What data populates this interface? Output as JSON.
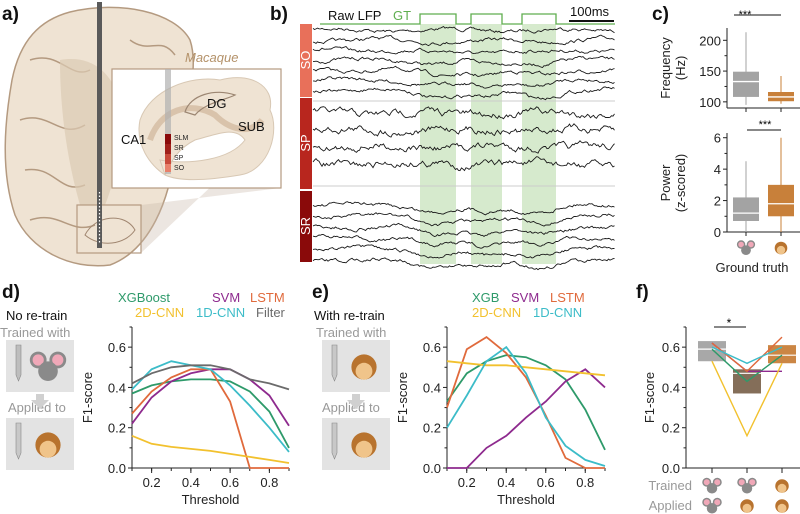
{
  "panel_labels": {
    "a": "a)",
    "b": "b)",
    "c": "c)",
    "d": "d)",
    "e": "e)",
    "f": "f)"
  },
  "colors": {
    "xgb": "#2e9a6a",
    "svm": "#8e2a8e",
    "lstm": "#e06a3c",
    "cnn2d": "#f2c12e",
    "cnn1d": "#3cbcc8",
    "filter": "#6b6b6b",
    "mouse_box": "#a3a3a3",
    "macaque_box": "#c8803a",
    "cross_box": "#7d6650",
    "gt": "#5fae4f",
    "gt_fill": "#cfe6c4",
    "so": "#e8705a",
    "sp": "#b8261e",
    "sr": "#8a0a0a",
    "tissue": "#efe3d3",
    "tissue_edge": "#b49a80"
  },
  "panel_a": {
    "species": "Macaque",
    "regions": [
      "DG",
      "SUB",
      "CA1"
    ],
    "layers": [
      "SLM",
      "SR",
      "SP",
      "SO"
    ]
  },
  "panel_b": {
    "raw_label": "Raw LFP",
    "gt_label": "GT",
    "scale_bar": "100ms",
    "layers": [
      "SO",
      "SP",
      "SR"
    ]
  },
  "panel_c": {
    "xlabel": "Ground truth",
    "significance": "***",
    "frequency": {
      "ylabel_1": "Frequency",
      "ylabel_2": "(Hz)",
      "y_ticks": [
        "100",
        "150",
        "200"
      ]
    },
    "power": {
      "ylabel_1": "Power",
      "ylabel_2": "(z-scored)",
      "y_ticks": [
        "0",
        "2",
        "4",
        "6"
      ]
    }
  },
  "panel_d": {
    "title": "No re-train",
    "trained_with": "Trained with",
    "applied_to": "Applied to",
    "legend": [
      "XGBoost",
      "SVM",
      "LSTM",
      "2D-CNN",
      "1D-CNN",
      "Filter"
    ]
  },
  "panel_e": {
    "title": "With re-train",
    "trained_with": "Trained with",
    "applied_to": "Applied to",
    "legend": [
      "XGB",
      "SVM",
      "LSTM",
      "2D-CNN",
      "1D-CNN"
    ]
  },
  "panel_f": {
    "significance": "*",
    "row_trained": "Trained",
    "row_applied": "Applied"
  },
  "chart_data": [
    {
      "id": "c-frequency",
      "type": "box",
      "ylabel": "Frequency (Hz)",
      "ylim": [
        90,
        220
      ],
      "categories": [
        "mouse",
        "macaque"
      ],
      "boxes": [
        {
          "min": 95,
          "q1": 108,
          "median": 133,
          "q3": 149,
          "max": 213
        },
        {
          "min": 97,
          "q1": 101,
          "median": 108,
          "q3": 116,
          "max": 142
        }
      ]
    },
    {
      "id": "c-power",
      "type": "box",
      "ylabel": "Power (z-scored)",
      "ylim": [
        0,
        6.3
      ],
      "categories": [
        "mouse",
        "macaque"
      ],
      "boxes": [
        {
          "min": 0,
          "q1": 0.7,
          "median": 1.2,
          "q3": 2.2,
          "max": 4.5
        },
        {
          "min": 0,
          "q1": 1.0,
          "median": 1.8,
          "q3": 3.0,
          "max": 6.0
        }
      ]
    },
    {
      "id": "d",
      "type": "line",
      "xlabel": "Threshold",
      "ylabel": "F1-score",
      "xlim": [
        0.1,
        0.9
      ],
      "ylim": [
        0,
        0.7
      ],
      "x_ticks": [
        "0.2",
        "0.4",
        "0.6",
        "0.8"
      ],
      "y_ticks": [
        "0.0",
        "0.2",
        "0.4",
        "0.6"
      ],
      "x": [
        0.1,
        0.2,
        0.3,
        0.4,
        0.5,
        0.6,
        0.7,
        0.8,
        0.9
      ],
      "series": [
        {
          "name": "XGBoost",
          "color": "xgb",
          "values": [
            0.37,
            0.41,
            0.43,
            0.44,
            0.44,
            0.43,
            0.38,
            0.28,
            0.1
          ]
        },
        {
          "name": "SVM",
          "color": "svm",
          "values": [
            0.22,
            0.35,
            0.43,
            0.47,
            0.49,
            0.49,
            0.44,
            0.36,
            0.21
          ]
        },
        {
          "name": "LSTM",
          "color": "lstm",
          "values": [
            0.27,
            0.38,
            0.45,
            0.49,
            0.49,
            0.33,
            0.0,
            0.0,
            0.0
          ]
        },
        {
          "name": "2D-CNN",
          "color": "cnn2d",
          "values": [
            0.16,
            0.12,
            0.105,
            0.095,
            0.085,
            0.07,
            0.055,
            0.04,
            0.025
          ]
        },
        {
          "name": "1D-CNN",
          "color": "cnn1d",
          "values": [
            0.39,
            0.49,
            0.53,
            0.51,
            0.49,
            0.41,
            0.31,
            0.2,
            0.08
          ]
        },
        {
          "name": "Filter",
          "color": "filter",
          "values": [
            0.42,
            0.47,
            0.5,
            0.51,
            0.51,
            0.49,
            0.44,
            0.42,
            0.39
          ]
        }
      ]
    },
    {
      "id": "e",
      "type": "line",
      "xlabel": "Threshold",
      "ylabel": "F1-score",
      "xlim": [
        0.1,
        0.9
      ],
      "ylim": [
        0,
        0.7
      ],
      "x_ticks": [
        "0.2",
        "0.4",
        "0.6",
        "0.8"
      ],
      "y_ticks": [
        "0.0",
        "0.2",
        "0.4",
        "0.6"
      ],
      "x": [
        0.1,
        0.2,
        0.3,
        0.4,
        0.5,
        0.6,
        0.7,
        0.8,
        0.9
      ],
      "series": [
        {
          "name": "XGB",
          "color": "xgb",
          "values": [
            0.33,
            0.47,
            0.53,
            0.56,
            0.55,
            0.51,
            0.44,
            0.29,
            0.09
          ]
        },
        {
          "name": "SVM",
          "color": "svm",
          "values": [
            0.0,
            0.0,
            0.1,
            0.16,
            0.25,
            0.33,
            0.43,
            0.49,
            0.4
          ]
        },
        {
          "name": "LSTM",
          "color": "lstm",
          "values": [
            0.3,
            0.59,
            0.65,
            0.57,
            0.45,
            0.26,
            0.05,
            0.0,
            0.0
          ]
        },
        {
          "name": "2D-CNN",
          "color": "cnn2d",
          "values": [
            0.53,
            0.52,
            0.51,
            0.51,
            0.5,
            0.49,
            0.48,
            0.47,
            0.46
          ]
        },
        {
          "name": "1D-CNN",
          "color": "cnn1d",
          "values": [
            0.2,
            0.36,
            0.53,
            0.6,
            0.47,
            0.25,
            0.11,
            0.04,
            0.01
          ]
        }
      ]
    },
    {
      "id": "f",
      "type": "box+line",
      "ylabel": "F1-score",
      "ylim": [
        0,
        0.7
      ],
      "y_ticks": [
        "0.0",
        "0.2",
        "0.4",
        "0.6"
      ],
      "categories": [
        {
          "trained": "mouse",
          "applied": "mouse"
        },
        {
          "trained": "mouse",
          "applied": "macaque"
        },
        {
          "trained": "macaque",
          "applied": "macaque"
        }
      ],
      "boxes": [
        {
          "q1": 0.53,
          "median": 0.59,
          "q3": 0.63,
          "color": "mouse_box"
        },
        {
          "q1": 0.37,
          "median": 0.47,
          "q3": 0.49,
          "color": "cross_box"
        },
        {
          "q1": 0.52,
          "median": 0.56,
          "q3": 0.61,
          "color": "macaque_box"
        }
      ],
      "series": [
        {
          "color": "xgb",
          "values": [
            0.59,
            0.43,
            0.56
          ]
        },
        {
          "color": "svm",
          "values": [
            0.62,
            0.48,
            0.48
          ]
        },
        {
          "color": "lstm",
          "values": [
            0.62,
            0.48,
            0.65
          ]
        },
        {
          "color": "cnn2d",
          "values": [
            0.53,
            0.16,
            0.52
          ]
        },
        {
          "color": "cnn1d",
          "values": [
            0.6,
            0.52,
            0.6
          ]
        }
      ]
    }
  ]
}
